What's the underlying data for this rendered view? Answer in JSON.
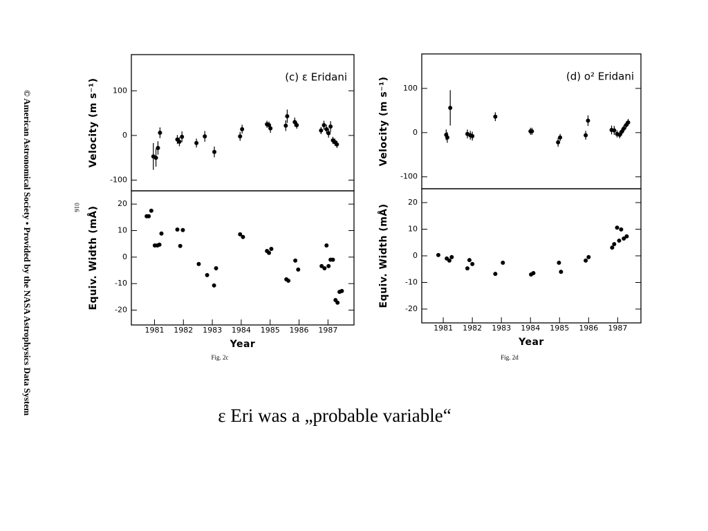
{
  "sidebar": "© American Astronomical Society • Provided by the NASA Astrophysics Data System",
  "page_number": "016",
  "figure_labels": [
    "Fig. 2c",
    "Fig. 2d"
  ],
  "caption": "ε Eri was a „probable variable“",
  "chart_data": [
    {
      "type": "scatter",
      "title": "(c) ε Eridani",
      "ylabel": "Velocity (m s⁻¹)",
      "xlim": [
        1980.2,
        1987.9
      ],
      "ylim": [
        -124,
        181
      ],
      "yticks": [
        -100,
        0,
        100
      ],
      "series": [
        {
          "color": "#000000",
          "x": [
            1980.96,
            1981.05,
            1981.12,
            1981.19,
            1981.79,
            1981.86,
            1981.95,
            1982.45,
            1982.74,
            1983.07,
            1983.96,
            1984.03,
            1984.89,
            1984.96,
            1985.01,
            1985.54,
            1985.59,
            1985.85,
            1985.92,
            1986.76,
            1986.86,
            1986.95,
            1987.02,
            1987.09,
            1987.17,
            1987.24,
            1987.31
          ],
          "values": [
            -47,
            -50,
            -28,
            6,
            -9,
            -14,
            -3,
            -17,
            -2,
            -37,
            -2,
            14,
            25,
            23,
            16,
            22,
            43,
            30,
            23,
            11,
            23,
            14,
            5,
            20,
            -11,
            -15,
            -20
          ],
          "errors": [
            30,
            20,
            15,
            12,
            10,
            10,
            12,
            10,
            12,
            12,
            10,
            10,
            8,
            8,
            10,
            12,
            15,
            10,
            8,
            8,
            10,
            10,
            10,
            12,
            8,
            8,
            8
          ]
        }
      ]
    },
    {
      "type": "scatter",
      "ylabel": "Equiv. Width (mÅ)",
      "xlabel": "Year",
      "xlim": [
        1980.2,
        1987.9
      ],
      "xticks": [
        1981,
        1982,
        1983,
        1984,
        1985,
        1986,
        1987
      ],
      "ylim": [
        -25.6,
        25
      ],
      "yticks": [
        -20,
        -10,
        0,
        10,
        20
      ],
      "series": [
        {
          "color": "#000000",
          "x": [
            1980.73,
            1980.8,
            1980.89,
            1981.01,
            1981.1,
            1981.17,
            1981.24,
            1981.79,
            1981.89,
            1981.98,
            1982.53,
            1982.82,
            1983.06,
            1983.13,
            1983.96,
            1984.06,
            1984.89,
            1984.96,
            1985.04,
            1985.56,
            1985.63,
            1985.87,
            1985.97,
            1986.78,
            1986.88,
            1986.95,
            1987.02,
            1987.09,
            1987.17,
            1987.26,
            1987.33,
            1987.4,
            1987.48
          ],
          "values": [
            15.4,
            15.4,
            17.5,
            4.4,
            4.4,
            4.7,
            8.9,
            10.4,
            4.2,
            10.2,
            -2.6,
            -6.8,
            -10.7,
            -4.2,
            8.6,
            7.6,
            2.3,
            1.6,
            3.1,
            -8.4,
            -8.9,
            -1.3,
            -4.7,
            -3.4,
            -4.2,
            4.4,
            -3.4,
            -1.0,
            -1.0,
            -16.2,
            -17.2,
            -13.1,
            -12.8
          ]
        }
      ]
    },
    {
      "type": "scatter",
      "title": "(d) o² Eridani",
      "ylabel": "Velocity (m s⁻¹)",
      "xlim": [
        1980.26,
        1987.8
      ],
      "ylim": [
        -127,
        178
      ],
      "yticks": [
        -100,
        0,
        100
      ],
      "series": [
        {
          "color": "#000000",
          "x": [
            1981.1,
            1981.14,
            1981.24,
            1981.83,
            1981.93,
            1982.0,
            1982.79,
            1984.0,
            1984.05,
            1984.95,
            1985.02,
            1985.9,
            1985.98,
            1986.79,
            1986.88,
            1986.98,
            1987.07,
            1987.14,
            1987.21,
            1987.29,
            1987.36
          ],
          "values": [
            -5,
            -11,
            56,
            -3,
            -6,
            -8,
            36,
            3,
            3,
            -22,
            -11,
            -6,
            27,
            6,
            5,
            -3,
            -5,
            2,
            9,
            17,
            23
          ],
          "errors": [
            12,
            12,
            40,
            10,
            10,
            10,
            10,
            8,
            8,
            10,
            8,
            10,
            12,
            10,
            10,
            8,
            8,
            8,
            8,
            8,
            8
          ]
        }
      ]
    },
    {
      "type": "scatter",
      "ylabel": "Equiv. Width (mÅ)",
      "xlabel": "Year",
      "xlim": [
        1980.26,
        1987.8
      ],
      "xticks": [
        1981,
        1982,
        1983,
        1984,
        1985,
        1986,
        1987
      ],
      "ylim": [
        -25.2,
        25.2
      ],
      "yticks": [
        -20,
        -10,
        0,
        10,
        20
      ],
      "series": [
        {
          "color": "#000000",
          "x": [
            1980.83,
            1981.12,
            1981.21,
            1981.29,
            1981.83,
            1981.9,
            1982.0,
            1982.79,
            1983.05,
            1984.02,
            1984.1,
            1984.98,
            1985.05,
            1985.9,
            1986.0,
            1986.81,
            1986.88,
            1986.98,
            1987.05,
            1987.12,
            1987.21,
            1987.31
          ],
          "values": [
            0.3,
            -1.0,
            -1.8,
            -0.5,
            -4.7,
            -1.6,
            -3.1,
            -6.8,
            -2.6,
            -7.0,
            -6.5,
            -2.6,
            -6.0,
            -1.8,
            -0.5,
            3.1,
            4.4,
            10.6,
            5.7,
            9.9,
            6.5,
            7.3
          ]
        }
      ]
    }
  ]
}
